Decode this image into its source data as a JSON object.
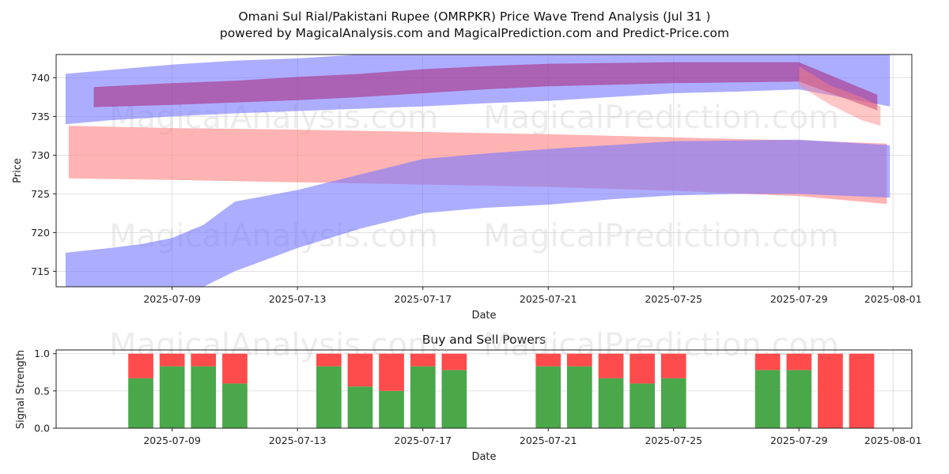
{
  "chart_data": [
    {
      "type": "area",
      "title": "Omani Sul Rial/Pakistani Rupee (OMRPKR) Price Wave Trend Analysis (Jul 31 )",
      "subtitle": "powered by MagicalAnalysis.com and MagicalPrediction.com and Predict-Price.com",
      "xlabel": "Date",
      "ylabel": "Price",
      "ylim": [
        713,
        743
      ],
      "yticks": [
        "715",
        "720",
        "725",
        "730",
        "735",
        "740"
      ],
      "xticks": [
        "2025-07-09",
        "2025-07-13",
        "2025-07-17",
        "2025-07-21",
        "2025-07-25",
        "2025-07-29",
        "2025-08-01"
      ],
      "xtick_day": [
        9,
        13,
        17,
        21,
        25,
        29,
        32
      ],
      "xlim_day": [
        5.3,
        32.6
      ],
      "grid": true,
      "watermarks": [
        "MagicalAnalysis.com",
        "MagicalPrediction.com"
      ],
      "bands": [
        {
          "name": "blue-upper-wave",
          "color": "#7777ff",
          "opacity": 0.6,
          "x": [
            5.6,
            7,
            9,
            11,
            13,
            15,
            17,
            19,
            21,
            23,
            25,
            27,
            29,
            31.5,
            31.9
          ],
          "upper": [
            740.5,
            741,
            741.7,
            742.2,
            742.5,
            743,
            743.2,
            743.3,
            743.3,
            743.3,
            743.3,
            743.3,
            743.3,
            743,
            743
          ],
          "lower": [
            734,
            734.5,
            735,
            735.4,
            735.7,
            736,
            736.3,
            736.7,
            737,
            737.5,
            738,
            738.2,
            738.5,
            736.6,
            736.3
          ]
        },
        {
          "name": "red-lower-wave",
          "color": "#ff8080",
          "opacity": 0.6,
          "x": [
            5.7,
            9,
            13,
            17,
            21,
            25,
            29,
            31.8
          ],
          "upper": [
            733.8,
            733.5,
            733.3,
            733,
            732.7,
            732.3,
            731.9,
            731.5
          ],
          "lower": [
            727,
            726.8,
            726.5,
            726.2,
            725.9,
            725.4,
            724.7,
            723.7
          ]
        },
        {
          "name": "blue-rising-wave",
          "color": "#7777ff",
          "opacity": 0.6,
          "x": [
            5.6,
            7,
            8,
            9,
            10,
            11,
            13,
            15,
            17,
            19,
            21,
            23,
            25,
            27,
            29,
            31.9
          ],
          "upper": [
            717.4,
            718,
            718.5,
            719.3,
            721,
            724,
            725.5,
            727.5,
            729.5,
            730.2,
            730.8,
            731.3,
            731.8,
            731.9,
            732,
            731.3
          ],
          "lower": [
            713,
            713,
            713,
            713,
            713,
            715,
            718,
            720.5,
            722.5,
            723.2,
            723.6,
            724.3,
            724.8,
            725,
            725,
            724.5
          ]
        },
        {
          "name": "magenta-main-wave",
          "color": "#aa2277",
          "opacity": 0.55,
          "x": [
            6.5,
            9,
            11,
            13,
            15,
            17,
            19,
            21,
            23,
            25,
            27,
            29,
            31.5
          ],
          "upper": [
            738.8,
            739.3,
            739.6,
            740.1,
            740.5,
            741.1,
            741.5,
            741.8,
            741.9,
            742,
            742,
            742,
            737.8
          ],
          "lower": [
            736.2,
            736.5,
            736.8,
            737.1,
            737.5,
            738,
            738.5,
            738.9,
            739.1,
            739.3,
            739.4,
            739.5,
            735.8
          ]
        },
        {
          "name": "red-drop-tail",
          "color": "#ff8080",
          "opacity": 0.45,
          "x": [
            29,
            30,
            31,
            31.6
          ],
          "upper": [
            741.5,
            739,
            737.5,
            736.3
          ],
          "lower": [
            739,
            736.5,
            734.5,
            733.8
          ]
        }
      ]
    },
    {
      "type": "bar",
      "title": "Buy and Sell Powers",
      "xlabel": "Date",
      "ylabel": "Signal Strength",
      "ylim": [
        0,
        1.05
      ],
      "yticks": [
        "0.0",
        "0.5",
        "1.0"
      ],
      "xticks": [
        "2025-07-09",
        "2025-07-13",
        "2025-07-17",
        "2025-07-21",
        "2025-07-25",
        "2025-07-29",
        "2025-08-01"
      ],
      "xtick_day": [
        9,
        13,
        17,
        21,
        25,
        29,
        32
      ],
      "xlim_day": [
        5.3,
        32.6
      ],
      "buy_color": "#4aa74a",
      "sell_color": "#ff4b4b",
      "days": [
        8,
        9,
        10,
        11,
        14,
        15,
        16,
        17,
        18,
        21,
        22,
        23,
        24,
        25,
        28,
        29,
        30,
        31
      ],
      "buy": [
        0.67,
        0.83,
        0.83,
        0.6,
        0.83,
        0.56,
        0.5,
        0.83,
        0.78,
        0.83,
        0.83,
        0.67,
        0.6,
        0.67,
        0.78,
        0.78,
        0.0,
        0.0
      ],
      "sell": [
        0.33,
        0.17,
        0.17,
        0.4,
        0.17,
        0.44,
        0.5,
        0.17,
        0.22,
        0.17,
        0.17,
        0.33,
        0.4,
        0.33,
        0.22,
        0.22,
        1.0,
        1.0
      ]
    }
  ]
}
